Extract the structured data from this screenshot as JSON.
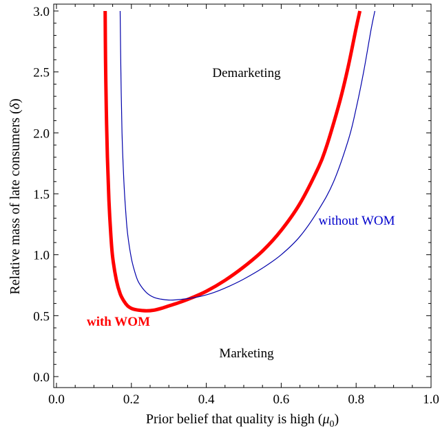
{
  "chart_data": {
    "type": "line",
    "title": "",
    "xlabel_main": "Prior belief that quality is high (",
    "xlabel_symbol": "μ",
    "xlabel_sub": "0",
    "xlabel_end": ")",
    "ylabel_main": "Relative mass of late consumers (",
    "ylabel_symbol": "δ",
    "ylabel_end": ")",
    "xlim": [
      0.0,
      1.0
    ],
    "ylim": [
      -0.05,
      3.05
    ],
    "xticks": [
      "0.0",
      "0.2",
      "0.4",
      "0.6",
      "0.8",
      "1.0"
    ],
    "yticks": [
      "0.0",
      "0.5",
      "1.0",
      "1.5",
      "2.0",
      "2.5",
      "3.0"
    ],
    "grid": false,
    "series": [
      {
        "name": "with WOM",
        "color": "#ff0000",
        "x": [
          0.13,
          0.131,
          0.133,
          0.136,
          0.14,
          0.145,
          0.15,
          0.16,
          0.17,
          0.18,
          0.19,
          0.2,
          0.21,
          0.22,
          0.24,
          0.26,
          0.28,
          0.3,
          0.33,
          0.36,
          0.4,
          0.45,
          0.5,
          0.55,
          0.6,
          0.65,
          0.7,
          0.72,
          0.74,
          0.76,
          0.78,
          0.8,
          0.81
        ],
        "y": [
          3.0,
          2.6,
          2.2,
          1.8,
          1.45,
          1.17,
          0.98,
          0.79,
          0.68,
          0.62,
          0.58,
          0.56,
          0.55,
          0.545,
          0.54,
          0.545,
          0.56,
          0.58,
          0.61,
          0.645,
          0.7,
          0.79,
          0.9,
          1.03,
          1.2,
          1.42,
          1.72,
          1.88,
          2.08,
          2.3,
          2.56,
          2.86,
          3.0
        ]
      },
      {
        "name": "without WOM",
        "color": "#0000aa",
        "x": [
          0.17,
          0.172,
          0.175,
          0.18,
          0.185,
          0.19,
          0.2,
          0.21,
          0.22,
          0.24,
          0.26,
          0.28,
          0.3,
          0.32,
          0.35,
          0.38,
          0.42,
          0.46,
          0.5,
          0.55,
          0.6,
          0.65,
          0.7,
          0.74,
          0.78,
          0.8,
          0.82,
          0.84,
          0.85
        ],
        "y": [
          3.0,
          2.5,
          2.0,
          1.6,
          1.35,
          1.17,
          0.97,
          0.85,
          0.77,
          0.69,
          0.65,
          0.635,
          0.628,
          0.63,
          0.64,
          0.655,
          0.69,
          0.74,
          0.8,
          0.89,
          1.0,
          1.15,
          1.37,
          1.6,
          1.95,
          2.2,
          2.5,
          2.85,
          3.0
        ]
      }
    ],
    "annotations": [
      {
        "text": "Demarketing",
        "color": "#000000"
      },
      {
        "text": "Marketing",
        "color": "#000000"
      },
      {
        "text": "with WOM",
        "color": "#ff0000",
        "bold": true
      },
      {
        "text": "without WOM",
        "color": "#0000cc",
        "bold": false
      }
    ]
  }
}
